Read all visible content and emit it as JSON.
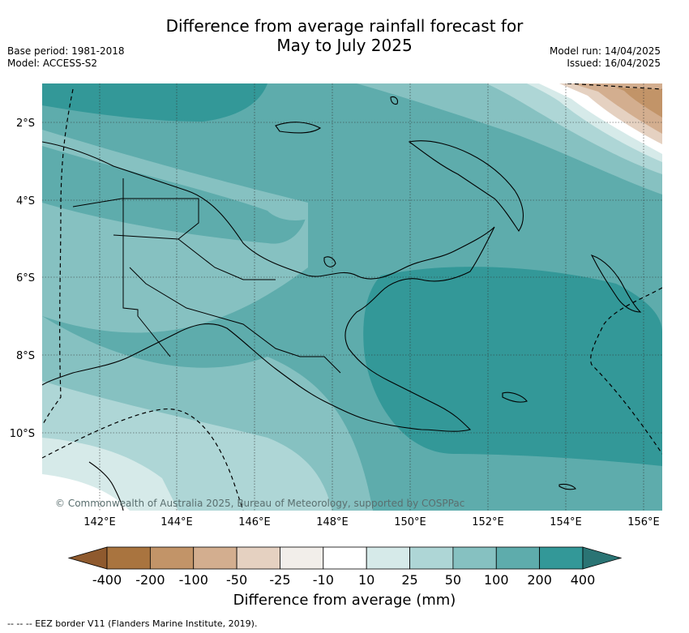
{
  "title_line1": "Difference from average rainfall forecast for",
  "title_line2": "May to July 2025",
  "meta_left": [
    "Base period: 1981-2018",
    "Model: ACCESS-S2"
  ],
  "meta_right": [
    "Model run: 14/04/2025",
    "Issued: 16/04/2025"
  ],
  "lat_labels": [
    "2°S",
    "4°S",
    "6°S",
    "8°S",
    "10°S"
  ],
  "lon_labels": [
    "142°E",
    "144°E",
    "146°E",
    "148°E",
    "150°E",
    "152°E",
    "154°E",
    "156°E"
  ],
  "copyright": "© Commonwealth of Australia 2025, Bureau of Meteorology, supported by COSPPac",
  "colorbar": {
    "title": "Difference from average (mm)",
    "ticks": [
      "-400",
      "-200",
      "-100",
      "-50",
      "-25",
      "-10",
      "10",
      "25",
      "50",
      "100",
      "200",
      "400"
    ],
    "colors": [
      "#8f5a2e",
      "#a9743f",
      "#c29468",
      "#d3ae8f",
      "#e5d1c1",
      "#f2eeea",
      "#ffffff",
      "#d6eae9",
      "#aed6d6",
      "#86c1c1",
      "#5eacac",
      "#339898",
      "#2a7474"
    ]
  },
  "footnote": "-- -- -- EEZ border V11 (Flanders Marine Institute, 2019)."
}
